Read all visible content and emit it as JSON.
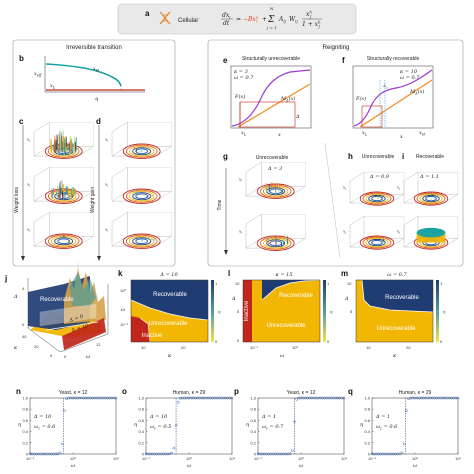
{
  "panel_a": {
    "label": "a",
    "cellular_label": "Cellular",
    "equation": {
      "lhs_num": "dx",
      "lhs_num_sub": "i",
      "lhs_den": "dt",
      "eq": "=",
      "degradation": "−Bx",
      "degradation_sup": "a",
      "degradation_sub": "i",
      "plus": "+",
      "sum_top": "N",
      "sum_bottom": "j = 1",
      "sum_symbol": "Σ",
      "coupling": "A",
      "coupling_sub": "ij",
      "weight": "W",
      "weight_sub": "ij",
      "frac_num": "x",
      "frac_num_sup": "h",
      "frac_num_sub": "j",
      "frac_den": "1 + x",
      "frac_den_sup": "h",
      "frac_den_sub": "j"
    }
  },
  "left_box": {
    "title": "Irreversible transition",
    "panel_b": {
      "label": "b",
      "ylabel": "x",
      "ylabel_sub": "eff",
      "xlabel": "q",
      "upper_branch": "x",
      "upper_branch_sub": "H",
      "lower_branch": "x",
      "lower_branch_sub": "L"
    },
    "panel_c": {
      "label": "c",
      "side_label": "Weight loss",
      "axis": "x",
      "axis_sub": "i"
    },
    "panel_d": {
      "label": "d",
      "side_label": "Weight gain",
      "axis": "x",
      "axis_sub": "i"
    }
  },
  "right_box": {
    "title": "Reigniting",
    "panel_e": {
      "label": "e",
      "title": "Structurally unrecoverable",
      "params": [
        "κ = 3",
        "ω = 0.7"
      ],
      "curve_f": "F(x)",
      "curve_m": "M",
      "curve_m_sub": "Δ",
      "curve_m_tail": "(x)",
      "xlabel": "x",
      "delta": "Δ",
      "marker": "x",
      "marker_sub": "L"
    },
    "panel_f": {
      "label": "f",
      "title": "Structurally recoverable",
      "params": [
        "κ = 10",
        "ω = 0.7"
      ],
      "curve_f": "F(x)",
      "curve_m": "M",
      "curve_m_sub": "Δ",
      "curve_m_tail": "(x)",
      "xlabel": "x",
      "delta_c": "Δ",
      "delta_c_sub": "c",
      "marker_l": "x",
      "marker_l_sub": "L",
      "marker_h": "x",
      "marker_h_sub": "H"
    },
    "panel_g": {
      "label": "g",
      "title": "Unrecoverable",
      "param": "Δ = 3",
      "side_label": "Time",
      "axis": "x",
      "axis_sub": "i"
    },
    "panel_h": {
      "label": "h",
      "title": "Unrecoverable",
      "param": "Δ = 0.9",
      "axis": "x",
      "axis_sub": "i"
    },
    "panel_i": {
      "label": "i",
      "title": "Recoverable",
      "param": "Δ = 1.1",
      "axis": "x",
      "axis_sub": "i"
    }
  },
  "panel_j": {
    "label": "j",
    "region_label": "Recoverable",
    "slice_labels": [
      "Δ = 0",
      "Δ = 10"
    ],
    "axis_delta": "Δ",
    "axis_kappa": "κ",
    "axis_omega": "ω",
    "kappa_ticks": [
      "40",
      "20",
      "0"
    ],
    "omega_ticks": [
      "0",
      "12"
    ],
    "delta_ticks": [
      "4",
      "0"
    ]
  },
  "panel_k": {
    "label": "k",
    "title": "Δ = 10",
    "xlabel": "κ",
    "ylabel": "ω",
    "regions": [
      "Recoverable",
      "Unrecoverable",
      "Inactive"
    ],
    "x_ticks": [
      "10",
      "20"
    ],
    "y_ticks": [
      "10⁰",
      "10⁻¹"
    ],
    "colorbar_label": "η",
    "colorbar_ticks": [
      "1",
      "0"
    ]
  },
  "panel_l": {
    "label": "l",
    "title": "κ = 15",
    "xlabel": "ω",
    "ylabel": "Δ",
    "strip_label": "Inactive",
    "regions": [
      "Recoverable",
      "Unrecoverable"
    ],
    "x_ticks": [
      "10⁻¹",
      "10⁰"
    ],
    "y_ticks": [
      "10",
      "5",
      "0"
    ],
    "colorbar_label": "η",
    "colorbar_ticks": [
      "1",
      "0"
    ]
  },
  "panel_m": {
    "label": "m",
    "title": "ω = 0.7",
    "xlabel": "κ",
    "ylabel": "Δ",
    "regions": [
      "Recoverable",
      "Unrecoverable"
    ],
    "x_ticks": [
      "10",
      "20"
    ],
    "y_ticks": [
      "10",
      "5"
    ],
    "colorbar_label": "η",
    "colorbar_ticks": [
      "1",
      "0"
    ]
  },
  "bottom_panels": [
    {
      "label": "n",
      "title": "Yeast, κ = 12",
      "param1": "Δ = 10",
      "param2": "ω",
      "param2_sub": "c",
      "param2_val": "= 0.6",
      "threshold": 0.6
    },
    {
      "label": "o",
      "title": "Human, κ = 29",
      "param1": "Δ = 10",
      "param2": "ω",
      "param2_sub": "c",
      "param2_val": "= 0.5",
      "threshold": 0.5
    },
    {
      "label": "p",
      "title": "Yeast, κ = 12",
      "param1": "Δ = 1",
      "param2": "ω",
      "param2_sub": "c",
      "param2_val": "= 0.7",
      "threshold": 0.7
    },
    {
      "label": "q",
      "title": "Human, κ = 29",
      "param1": "Δ = 1",
      "param2": "ω",
      "param2_sub": "c",
      "param2_val": "= 0.6",
      "threshold": 0.6
    }
  ],
  "bottom_axes": {
    "ylabel": "η",
    "xlabel": "ω",
    "y_ticks": [
      "1.0",
      "0.8",
      "0.6",
      "0.4",
      "0.2",
      "0"
    ],
    "x_ticks": [
      "10⁻¹",
      "10⁰",
      "10¹"
    ]
  },
  "colors": {
    "recoverable": "#1f3c73",
    "unrecoverable": "#f2b705",
    "inactive": "#c0261b",
    "teal": "#17a3a3",
    "violet": "#9b3bd6",
    "orange": "#f08a1c",
    "cyan_title": "#2aa7d8",
    "orange_title": "#e8871a"
  }
}
